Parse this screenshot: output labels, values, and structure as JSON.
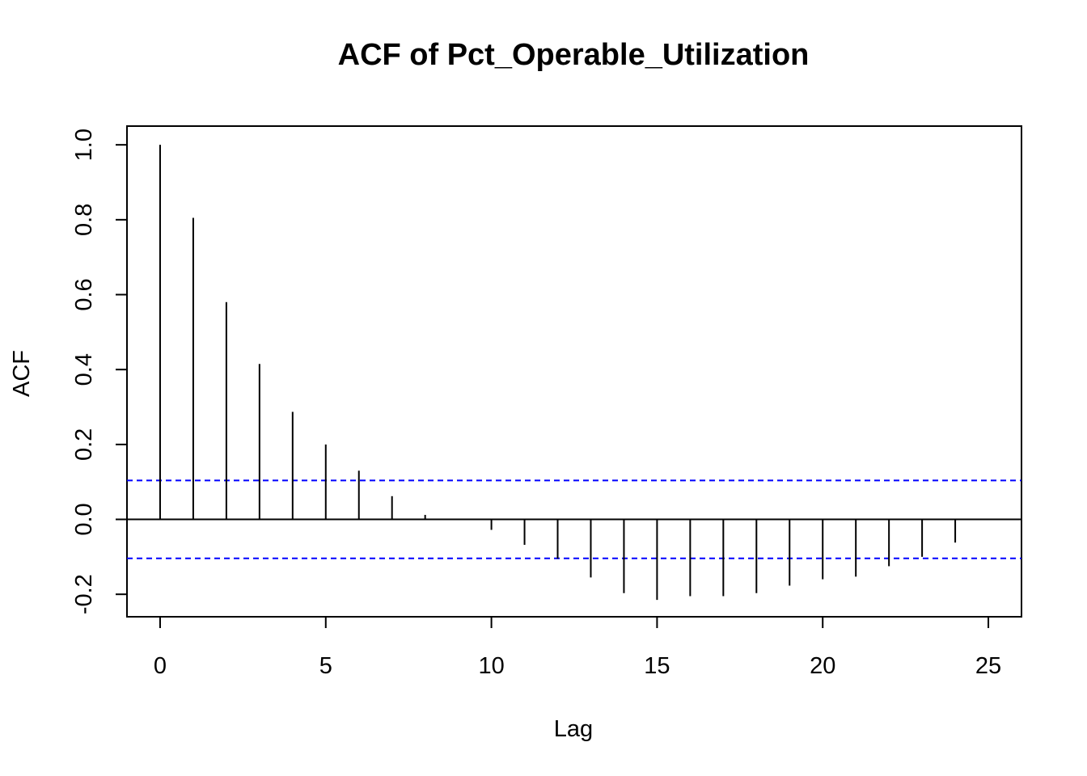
{
  "chart_data": {
    "type": "bar",
    "title": "ACF of Pct_Operable_Utilization",
    "xlabel": "Lag",
    "ylabel": "ACF",
    "xlim": [
      -1,
      26
    ],
    "ylim": [
      -0.26,
      1.05
    ],
    "x_ticks": [
      "0",
      "5",
      "10",
      "15",
      "20",
      "25"
    ],
    "y_ticks": [
      "-0.2",
      "0.0",
      "0.2",
      "0.4",
      "0.6",
      "0.8",
      "1.0"
    ],
    "lags": [
      0,
      1,
      2,
      3,
      4,
      5,
      6,
      7,
      8,
      9,
      10,
      11,
      12,
      13,
      14,
      15,
      16,
      17,
      18,
      19,
      20,
      21,
      22,
      23,
      24
    ],
    "values": [
      1.0,
      0.805,
      0.58,
      0.415,
      0.287,
      0.2,
      0.13,
      0.062,
      0.012,
      -0.002,
      -0.028,
      -0.068,
      -0.105,
      -0.155,
      -0.197,
      -0.215,
      -0.205,
      -0.205,
      -0.197,
      -0.177,
      -0.16,
      -0.153,
      -0.125,
      -0.1,
      -0.062
    ],
    "confidence_bound": 0.104,
    "colors": {
      "bars": "#000000",
      "confidence": "#0000ff",
      "zero_line": "#000000"
    },
    "grid": false,
    "legend": "none"
  }
}
